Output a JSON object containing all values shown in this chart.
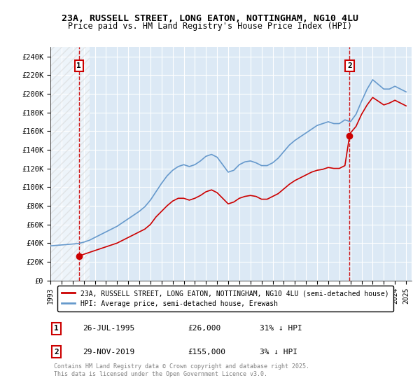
{
  "title_line1": "23A, RUSSELL STREET, LONG EATON, NOTTINGHAM, NG10 4LU",
  "title_line2": "Price paid vs. HM Land Registry's House Price Index (HPI)",
  "background_color": "#dce9f5",
  "hatch_region_end_year": 1996.5,
  "xmin": 1993,
  "xmax": 2025.5,
  "ymin": 0,
  "ymax": 250000,
  "yticks": [
    0,
    20000,
    40000,
    60000,
    80000,
    100000,
    120000,
    140000,
    160000,
    180000,
    200000,
    220000,
    240000
  ],
  "ytick_labels": [
    "£0",
    "£20K",
    "£40K",
    "£60K",
    "£80K",
    "£100K",
    "£120K",
    "£140K",
    "£160K",
    "£180K",
    "£200K",
    "£220K",
    "£240K"
  ],
  "xticks": [
    1993,
    1994,
    1995,
    1996,
    1997,
    1998,
    1999,
    2000,
    2001,
    2002,
    2003,
    2004,
    2005,
    2006,
    2007,
    2008,
    2009,
    2010,
    2011,
    2012,
    2013,
    2014,
    2015,
    2016,
    2017,
    2018,
    2019,
    2020,
    2021,
    2022,
    2023,
    2024,
    2025
  ],
  "purchase1_year": 1995.57,
  "purchase1_price": 26000,
  "purchase2_year": 2019.92,
  "purchase2_price": 155000,
  "red_line_color": "#cc0000",
  "blue_line_color": "#6699cc",
  "legend_red_label": "23A, RUSSELL STREET, LONG EATON, NOTTINGHAM, NG10 4LU (semi-detached house)",
  "legend_blue_label": "HPI: Average price, semi-detached house, Erewash",
  "footnote": "Contains HM Land Registry data © Crown copyright and database right 2025.\nThis data is licensed under the Open Government Licence v3.0.",
  "table_row1": [
    "1",
    "26-JUL-1995",
    "£26,000",
    "31% ↓ HPI"
  ],
  "table_row2": [
    "2",
    "29-NOV-2019",
    "£155,000",
    "3% ↓ HPI"
  ],
  "hpi_data": {
    "years": [
      1993.0,
      1993.5,
      1994.0,
      1994.5,
      1995.0,
      1995.5,
      1996.0,
      1996.5,
      1997.0,
      1997.5,
      1998.0,
      1998.5,
      1999.0,
      1999.5,
      2000.0,
      2000.5,
      2001.0,
      2001.5,
      2002.0,
      2002.5,
      2003.0,
      2003.5,
      2004.0,
      2004.5,
      2005.0,
      2005.5,
      2006.0,
      2006.5,
      2007.0,
      2007.5,
      2008.0,
      2008.5,
      2009.0,
      2009.5,
      2010.0,
      2010.5,
      2011.0,
      2011.5,
      2012.0,
      2012.5,
      2013.0,
      2013.5,
      2014.0,
      2014.5,
      2015.0,
      2015.5,
      2016.0,
      2016.5,
      2017.0,
      2017.5,
      2018.0,
      2018.5,
      2019.0,
      2019.5,
      2020.0,
      2020.5,
      2021.0,
      2021.5,
      2022.0,
      2022.5,
      2023.0,
      2023.5,
      2024.0,
      2024.5,
      2025.0
    ],
    "values": [
      37000,
      37500,
      38000,
      38500,
      39000,
      39500,
      41000,
      43000,
      46000,
      49000,
      52000,
      55000,
      58000,
      62000,
      66000,
      70000,
      74000,
      79000,
      86000,
      95000,
      104000,
      112000,
      118000,
      122000,
      124000,
      122000,
      124000,
      128000,
      133000,
      135000,
      132000,
      124000,
      116000,
      118000,
      124000,
      127000,
      128000,
      126000,
      123000,
      123000,
      126000,
      131000,
      138000,
      145000,
      150000,
      154000,
      158000,
      162000,
      166000,
      168000,
      170000,
      168000,
      168000,
      172000,
      170000,
      178000,
      192000,
      205000,
      215000,
      210000,
      205000,
      205000,
      208000,
      205000,
      202000
    ]
  },
  "red_line_data": {
    "years": [
      1995.57,
      1995.7,
      1996.0,
      1997.0,
      1998.0,
      1998.5,
      1999.0,
      1999.5,
      2000.0,
      2000.5,
      2001.0,
      2001.5,
      2002.0,
      2002.5,
      2003.0,
      2003.5,
      2004.0,
      2004.5,
      2005.0,
      2005.5,
      2006.0,
      2006.5,
      2007.0,
      2007.5,
      2008.0,
      2008.5,
      2009.0,
      2009.5,
      2010.0,
      2010.5,
      2011.0,
      2011.5,
      2012.0,
      2012.5,
      2013.0,
      2013.5,
      2014.0,
      2014.5,
      2015.0,
      2015.5,
      2016.0,
      2016.5,
      2017.0,
      2017.5,
      2018.0,
      2018.5,
      2019.0,
      2019.5,
      2019.92,
      2020.0,
      2020.5,
      2021.0,
      2021.5,
      2022.0,
      2022.5,
      2023.0,
      2023.5,
      2024.0,
      2024.5,
      2025.0
    ],
    "values": [
      26000,
      26500,
      28000,
      32000,
      36000,
      38000,
      40000,
      43000,
      46000,
      49000,
      52000,
      55000,
      60000,
      68000,
      74000,
      80000,
      85000,
      88000,
      88000,
      86000,
      88000,
      91000,
      95000,
      97000,
      94000,
      88000,
      82000,
      84000,
      88000,
      90000,
      91000,
      90000,
      87000,
      87000,
      90000,
      93000,
      98000,
      103000,
      107000,
      110000,
      113000,
      116000,
      118000,
      119000,
      121000,
      120000,
      120000,
      123000,
      155000,
      158000,
      165000,
      178000,
      188000,
      196000,
      192000,
      188000,
      190000,
      193000,
      190000,
      187000
    ]
  }
}
